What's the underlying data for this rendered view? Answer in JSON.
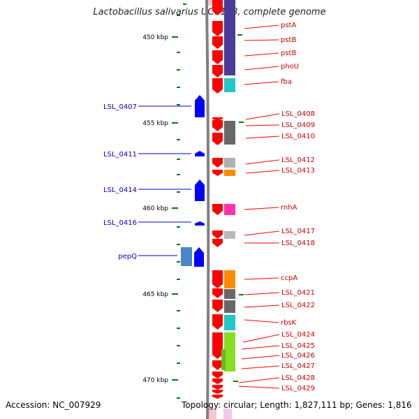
{
  "title": "Lactobacillus salivarius UCC118, complete genome",
  "footer": {
    "accession": "Accession: NC_007929",
    "topology": "Topology: circular; Length: 1,827,111 bp; Genes: 1,816"
  },
  "colors": {
    "forward": "#0000ff",
    "reverse": "#ff0000",
    "ticks": "#008000",
    "backbone": "#808080"
  },
  "scale": [
    {
      "label": "450 kbp",
      "pos": 450
    },
    {
      "label": "455 kbp",
      "pos": 455
    },
    {
      "label": "460 kbp",
      "pos": 460
    },
    {
      "label": "465 kbp",
      "pos": 465
    },
    {
      "label": "470 kbp",
      "pos": 470
    }
  ],
  "genes_forward": [
    "LSL_0407",
    "LSL_0411",
    "LSL_0414",
    "LSL_0416",
    "pepQ"
  ],
  "genes_reverse": [
    "pstA",
    "pstB",
    "pstB",
    "phoU",
    "fba",
    "LSL_0408",
    "LSL_0409",
    "LSL_0410",
    "LSL_0412",
    "LSL_0413",
    "rnhA",
    "LSL_0417",
    "LSL_0418",
    "ccpA",
    "LSL_0421",
    "LSL_0422",
    "rbsK",
    "LSL_0424",
    "LSL_0425",
    "LSL_0426",
    "LSL_0427",
    "LSL_0428",
    "LSL_0429"
  ]
}
